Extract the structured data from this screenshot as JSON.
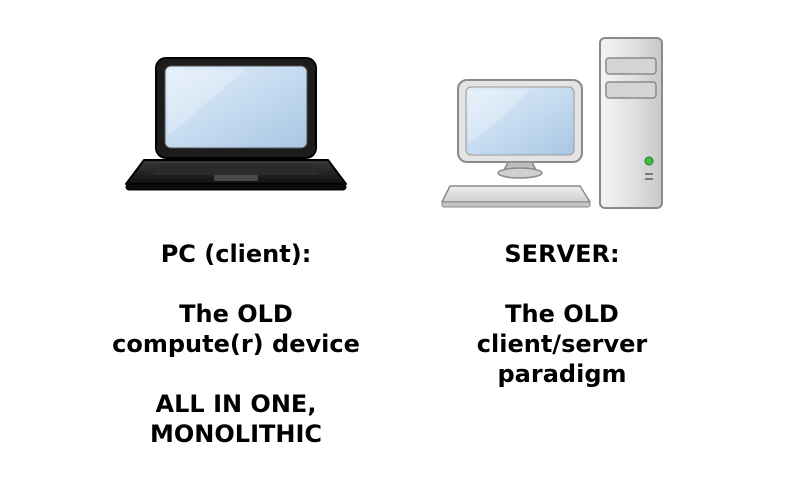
{
  "left_panel": {
    "icon": "laptop-icon",
    "heading": "PC (client):",
    "line1": "The OLD",
    "line2": "compute(r) device",
    "line3": "ALL IN ONE,",
    "line4": "MONOLITHIC"
  },
  "right_panel": {
    "icon": "desktop-server-icon",
    "heading": "SERVER:",
    "line1": "The OLD",
    "line2": "client/server",
    "line3": "paradigm"
  },
  "colors": {
    "screen_blue": "#c9dff2",
    "laptop_body": "#1f1f1f",
    "server_case": "#e6e6e6",
    "power_led": "#3fbf3f"
  }
}
